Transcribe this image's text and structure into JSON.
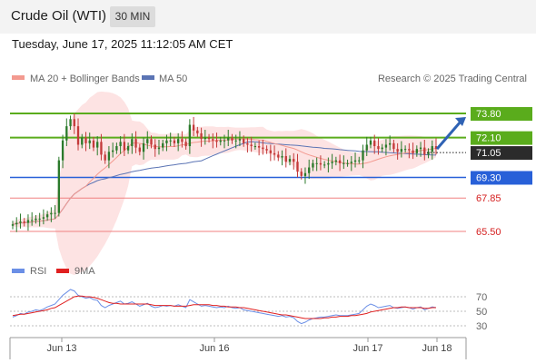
{
  "header": {
    "title": "Crude Oil (WTI)",
    "interval": "30 MIN",
    "timestamp": "Tuesday, June 17, 2025 11:12:05 AM CET"
  },
  "legend": {
    "ma20_label": "MA 20 + Bollinger Bands",
    "ma50_label": "MA 50",
    "copyright": "Research © 2025 Trading Central",
    "rsi_label": "RSI",
    "nine_ma_label": "9MA"
  },
  "colors": {
    "resistance": "#5aac1c",
    "support": "#2860d8",
    "pivot_line": "#f08080",
    "red_label": "#d52020",
    "ma20": "#f39a90",
    "ma50": "#5b74b4",
    "band_fill": "#fde3e3",
    "candle_up": "#2b7a2b",
    "candle_down": "#c43a3a",
    "rsi": "#6b8fe6",
    "rsi_ma": "#e02020",
    "arrow": "#2f62b4"
  },
  "chart_data": [
    {
      "type": "candlestick",
      "title": "Crude Oil (WTI)",
      "interval": "30 MIN",
      "x_labels": [
        "Jun 13",
        "Jun 16",
        "Jun 17",
        "Jun 18"
      ],
      "current_price": 71.05,
      "levels": [
        {
          "value": 73.8,
          "label": "73.80",
          "kind": "resistance"
        },
        {
          "value": 72.1,
          "label": "72.10",
          "kind": "resistance"
        },
        {
          "value": 69.3,
          "label": "69.30",
          "kind": "pivot"
        },
        {
          "value": 67.85,
          "label": "67.85",
          "kind": "support"
        },
        {
          "value": 65.5,
          "label": "65.50",
          "kind": "support"
        }
      ],
      "projection": {
        "from": 71.3,
        "to": 73.8
      },
      "close_series": [
        66.0,
        66.1,
        66.2,
        66.1,
        66.3,
        66.3,
        66.4,
        66.4,
        66.5,
        66.7,
        66.8,
        66.8,
        70.5,
        71.9,
        72.9,
        73.4,
        72.9,
        71.6,
        72.1,
        71.7,
        71.9,
        71.4,
        71.8,
        70.9,
        70.5,
        71.1,
        71.2,
        71.5,
        71.8,
        71.2,
        71.5,
        72.0,
        71.4,
        71.1,
        71.7,
        72.0,
        71.6,
        71.3,
        71.4,
        71.7,
        71.9,
        71.9,
        71.7,
        72.0,
        71.8,
        71.5,
        73.0,
        72.6,
        72.4,
        72.0,
        72.1,
        72.0,
        71.9,
        71.8,
        71.9,
        71.9,
        72.1,
        71.9,
        71.9,
        72.0,
        71.7,
        71.6,
        71.5,
        71.5,
        71.4,
        71.3,
        71.2,
        71.0,
        70.9,
        70.7,
        70.8,
        70.4,
        70.6,
        70.4,
        69.7,
        69.4,
        69.6,
        70.0,
        70.3,
        70.3,
        70.2,
        70.2,
        70.3,
        70.4,
        70.5,
        70.3,
        70.3,
        70.3,
        70.4,
        70.5,
        70.5,
        71.2,
        71.6,
        71.9,
        71.5,
        71.3,
        71.4,
        71.6,
        71.7,
        71.3,
        71.1,
        71.3,
        71.3,
        71.2,
        71.0,
        71.3,
        71.4,
        70.9,
        71.1,
        71.5,
        71.3
      ]
    },
    {
      "type": "line",
      "title": "RSI",
      "series": [
        {
          "name": "RSI"
        },
        {
          "name": "9MA"
        }
      ],
      "y_ticks": [
        70,
        50,
        30
      ],
      "rsi_series": [
        42,
        44,
        47,
        46,
        49,
        50,
        52,
        51,
        53,
        56,
        58,
        60,
        66,
        72,
        76,
        80,
        78,
        72,
        70,
        68,
        69,
        66,
        65,
        58,
        55,
        58,
        60,
        62,
        64,
        60,
        61,
        63,
        60,
        57,
        59,
        61,
        57,
        55,
        56,
        58,
        57,
        58,
        57,
        59,
        57,
        55,
        66,
        63,
        60,
        57,
        58,
        57,
        56,
        55,
        56,
        55,
        57,
        55,
        54,
        55,
        52,
        51,
        50,
        49,
        48,
        47,
        46,
        45,
        44,
        43,
        44,
        42,
        43,
        41,
        36,
        33,
        35,
        38,
        40,
        41,
        42,
        42,
        43,
        44,
        45,
        44,
        44,
        44,
        45,
        46,
        47,
        52,
        57,
        60,
        58,
        55,
        56,
        57,
        58,
        55,
        54,
        55,
        56,
        55,
        53,
        55,
        56,
        52,
        54,
        56,
        55
      ],
      "rsi_ma_series": [
        44,
        45,
        46,
        46,
        47,
        48,
        49,
        50,
        51,
        52,
        54,
        55,
        58,
        61,
        64,
        67,
        70,
        71,
        71,
        70,
        70,
        69,
        68,
        66,
        64,
        62,
        61,
        61,
        60,
        60,
        60,
        60,
        60,
        60,
        60,
        60,
        59,
        58,
        58,
        58,
        58,
        58,
        57,
        57,
        57,
        57,
        58,
        59,
        59,
        59,
        59,
        59,
        58,
        58,
        57,
        57,
        56,
        56,
        56,
        55,
        55,
        54,
        53,
        52,
        51,
        50,
        49,
        48,
        47,
        46,
        45,
        45,
        44,
        43,
        42,
        41,
        40,
        40,
        40,
        40,
        40,
        41,
        41,
        42,
        42,
        43,
        43,
        43,
        44,
        44,
        45,
        46,
        47,
        49,
        50,
        51,
        52,
        53,
        54,
        55,
        55,
        56,
        56,
        55,
        55,
        55,
        55,
        54,
        54,
        55,
        55
      ]
    }
  ]
}
